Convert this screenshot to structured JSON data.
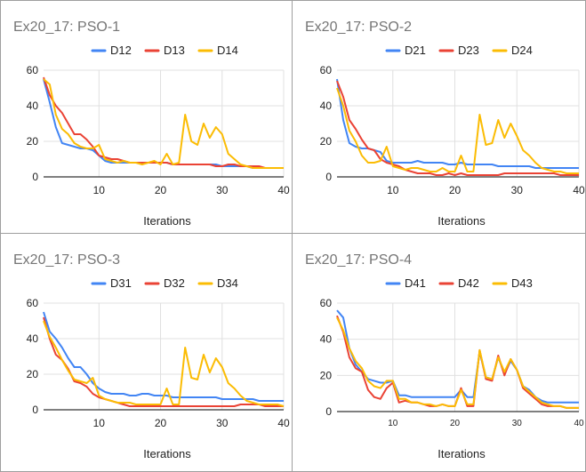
{
  "colors": {
    "blue": "#4285f4",
    "red": "#ea4335",
    "yellow": "#fbbc04",
    "grid": "#e0e0e0",
    "axis": "#333333"
  },
  "chart_data": [
    {
      "type": "line",
      "title": "Ex20_17: PSO-1",
      "xlabel": "Iterations",
      "ylabel": "",
      "xlim": [
        1,
        40
      ],
      "ylim": [
        0,
        60
      ],
      "xticks": [
        10,
        20,
        30,
        40
      ],
      "yticks": [
        0,
        20,
        40,
        60
      ],
      "legend_position": "top",
      "x": [
        1,
        2,
        3,
        4,
        5,
        6,
        7,
        8,
        9,
        10,
        11,
        12,
        13,
        14,
        15,
        16,
        17,
        18,
        19,
        20,
        21,
        22,
        23,
        24,
        25,
        26,
        27,
        28,
        29,
        30,
        31,
        32,
        33,
        34,
        35,
        36,
        37,
        38,
        39,
        40
      ],
      "series": [
        {
          "name": "D12",
          "color": "#4285f4",
          "values": [
            55,
            42,
            28,
            19,
            18,
            17,
            16,
            16,
            15,
            12,
            9,
            8,
            8,
            8,
            8,
            8,
            8,
            8,
            8,
            8,
            8,
            7,
            7,
            7,
            7,
            7,
            7,
            7,
            7,
            6,
            6,
            6,
            6,
            6,
            5,
            5,
            5,
            5,
            5,
            5
          ]
        },
        {
          "name": "D13",
          "color": "#ea4335",
          "values": [
            56,
            46,
            40,
            36,
            30,
            24,
            24,
            21,
            17,
            12,
            11,
            10,
            10,
            9,
            8,
            8,
            8,
            8,
            8,
            8,
            8,
            7,
            7,
            7,
            7,
            7,
            7,
            7,
            6,
            6,
            7,
            7,
            6,
            6,
            6,
            6,
            5,
            5,
            5,
            5
          ]
        },
        {
          "name": "D14",
          "color": "#fbbc04",
          "values": [
            55,
            52,
            35,
            27,
            24,
            19,
            17,
            16,
            16,
            18,
            10,
            9,
            8,
            9,
            8,
            8,
            7,
            8,
            9,
            7,
            13,
            7,
            8,
            35,
            20,
            18,
            30,
            22,
            28,
            24,
            13,
            10,
            7,
            6,
            5,
            5,
            5,
            5,
            5,
            5
          ]
        }
      ]
    },
    {
      "type": "line",
      "title": "Ex20_17: PSO-2",
      "xlabel": "Iterations",
      "ylabel": "",
      "xlim": [
        1,
        40
      ],
      "ylim": [
        0,
        60
      ],
      "xticks": [
        10,
        20,
        30,
        40
      ],
      "yticks": [
        0,
        20,
        40,
        60
      ],
      "legend_position": "top",
      "x": [
        1,
        2,
        3,
        4,
        5,
        6,
        7,
        8,
        9,
        10,
        11,
        12,
        13,
        14,
        15,
        16,
        17,
        18,
        19,
        20,
        21,
        22,
        23,
        24,
        25,
        26,
        27,
        28,
        29,
        30,
        31,
        32,
        33,
        34,
        35,
        36,
        37,
        38,
        39,
        40
      ],
      "series": [
        {
          "name": "D21",
          "color": "#4285f4",
          "values": [
            55,
            32,
            19,
            17,
            16,
            16,
            15,
            14,
            9,
            8,
            8,
            8,
            8,
            9,
            8,
            8,
            8,
            8,
            7,
            7,
            8,
            7,
            7,
            7,
            7,
            7,
            6,
            6,
            6,
            6,
            6,
            6,
            5,
            5,
            5,
            5,
            5,
            5,
            5,
            5
          ]
        },
        {
          "name": "D23",
          "color": "#ea4335",
          "values": [
            54,
            45,
            32,
            27,
            21,
            16,
            15,
            10,
            8,
            7,
            6,
            4,
            3,
            2,
            2,
            2,
            1,
            1,
            2,
            1,
            2,
            1,
            1,
            1,
            1,
            1,
            1,
            2,
            2,
            2,
            2,
            2,
            2,
            2,
            2,
            2,
            1,
            1,
            1,
            1
          ]
        },
        {
          "name": "D24",
          "color": "#fbbc04",
          "values": [
            50,
            40,
            26,
            20,
            12,
            8,
            8,
            9,
            17,
            6,
            5,
            4,
            5,
            5,
            4,
            3,
            3,
            5,
            3,
            3,
            12,
            3,
            3,
            35,
            18,
            19,
            32,
            22,
            30,
            23,
            15,
            12,
            8,
            5,
            4,
            3,
            3,
            2,
            2,
            2
          ]
        }
      ]
    },
    {
      "type": "line",
      "title": "Ex20_17: PSO-3",
      "xlabel": "Iterations",
      "ylabel": "",
      "xlim": [
        1,
        40
      ],
      "ylim": [
        0,
        60
      ],
      "xticks": [
        10,
        20,
        30,
        40
      ],
      "yticks": [
        0,
        20,
        40,
        60
      ],
      "legend_position": "top",
      "x": [
        1,
        2,
        3,
        4,
        5,
        6,
        7,
        8,
        9,
        10,
        11,
        12,
        13,
        14,
        15,
        16,
        17,
        18,
        19,
        20,
        21,
        22,
        23,
        24,
        25,
        26,
        27,
        28,
        29,
        30,
        31,
        32,
        33,
        34,
        35,
        36,
        37,
        38,
        39,
        40
      ],
      "series": [
        {
          "name": "D31",
          "color": "#4285f4",
          "values": [
            55,
            44,
            40,
            35,
            29,
            24,
            24,
            20,
            15,
            12,
            10,
            9,
            9,
            9,
            8,
            8,
            9,
            9,
            8,
            8,
            8,
            7,
            7,
            7,
            7,
            7,
            7,
            7,
            7,
            6,
            6,
            6,
            6,
            6,
            6,
            5,
            5,
            5,
            5,
            5
          ]
        },
        {
          "name": "D32",
          "color": "#ea4335",
          "values": [
            52,
            40,
            31,
            28,
            23,
            16,
            15,
            13,
            9,
            7,
            6,
            5,
            4,
            3,
            2,
            2,
            2,
            2,
            2,
            2,
            2,
            2,
            2,
            2,
            2,
            2,
            2,
            2,
            2,
            2,
            2,
            2,
            3,
            3,
            3,
            3,
            2,
            2,
            2,
            2
          ]
        },
        {
          "name": "D34",
          "color": "#fbbc04",
          "values": [
            50,
            41,
            35,
            28,
            22,
            17,
            16,
            15,
            18,
            8,
            6,
            5,
            4,
            4,
            4,
            3,
            3,
            3,
            3,
            3,
            12,
            3,
            3,
            35,
            18,
            17,
            31,
            21,
            29,
            24,
            15,
            12,
            8,
            5,
            4,
            3,
            3,
            3,
            3,
            2
          ]
        }
      ]
    },
    {
      "type": "line",
      "title": "Ex20_17: PSO-4",
      "xlabel": "Iterations",
      "ylabel": "",
      "xlim": [
        1,
        40
      ],
      "ylim": [
        0,
        60
      ],
      "xticks": [
        10,
        20,
        30,
        40
      ],
      "yticks": [
        0,
        20,
        40,
        60
      ],
      "legend_position": "top",
      "x": [
        1,
        2,
        3,
        4,
        5,
        6,
        7,
        8,
        9,
        10,
        11,
        12,
        13,
        14,
        15,
        16,
        17,
        18,
        19,
        20,
        21,
        22,
        23,
        24,
        25,
        26,
        27,
        28,
        29,
        30,
        31,
        32,
        33,
        34,
        35,
        36,
        37,
        38,
        39,
        40
      ],
      "series": [
        {
          "name": "D41",
          "color": "#4285f4",
          "values": [
            56,
            52,
            35,
            26,
            22,
            18,
            17,
            16,
            16,
            17,
            9,
            9,
            8,
            8,
            8,
            8,
            8,
            8,
            8,
            8,
            12,
            8,
            8,
            33,
            19,
            18,
            30,
            21,
            28,
            23,
            14,
            12,
            8,
            6,
            5,
            5,
            5,
            5,
            5,
            5
          ]
        },
        {
          "name": "D42",
          "color": "#ea4335",
          "values": [
            53,
            44,
            30,
            24,
            22,
            12,
            8,
            7,
            13,
            16,
            5,
            6,
            5,
            5,
            4,
            3,
            3,
            4,
            3,
            3,
            13,
            3,
            3,
            34,
            18,
            17,
            31,
            20,
            29,
            23,
            13,
            10,
            7,
            4,
            3,
            3,
            3,
            2,
            2,
            2
          ]
        },
        {
          "name": "D43",
          "color": "#fbbc04",
          "values": [
            52,
            45,
            35,
            28,
            24,
            17,
            14,
            13,
            17,
            17,
            7,
            7,
            5,
            5,
            4,
            4,
            3,
            4,
            3,
            3,
            12,
            4,
            4,
            34,
            19,
            18,
            30,
            22,
            29,
            23,
            14,
            11,
            8,
            5,
            4,
            3,
            3,
            2,
            2,
            2
          ]
        }
      ]
    }
  ]
}
